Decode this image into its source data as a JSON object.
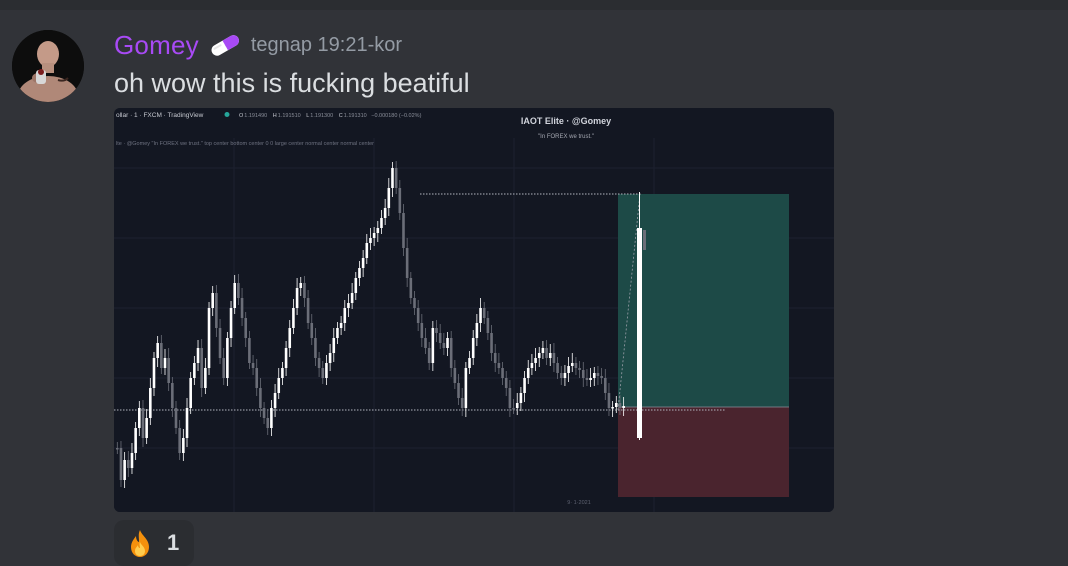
{
  "message": {
    "author": "Gomey",
    "author_badge_icon": "pill-icon",
    "timestamp": "tegnap 19:21-kor",
    "content": "oh wow this is fucking beatiful",
    "avatar_icon": "avatar-person-icon"
  },
  "attachment": {
    "symbol_line": "ollar · 1 · FXCM · TradingView",
    "ohlc": {
      "o_label": "O",
      "o_value": "1.191490",
      "h_label": "H",
      "h_value": "1.191510",
      "l_label": "L",
      "l_value": "1.191300",
      "c_label": "C",
      "c_value": "1.191310",
      "change": "−0.000180 (−0.02%)"
    },
    "indicator_line": "lte · @Gomey \"In FOREX we trust.\" top center bottom center 0 0 large center normal center normal center",
    "watermark_title": "IAOT Elite · @Gomey",
    "watermark_subtitle": "\"In FOREX we trust.\"",
    "date_label": "9· 1·2021",
    "colors": {
      "background": "#131722",
      "take_profit_zone": "#1d4a47",
      "stop_loss_zone": "#4a242e",
      "candle_bull": "#ffffff",
      "candle_bear": "#6b6e78",
      "status_dot": "#26a69a"
    }
  },
  "reaction": {
    "emoji_icon": "fire-icon",
    "count": "1"
  }
}
